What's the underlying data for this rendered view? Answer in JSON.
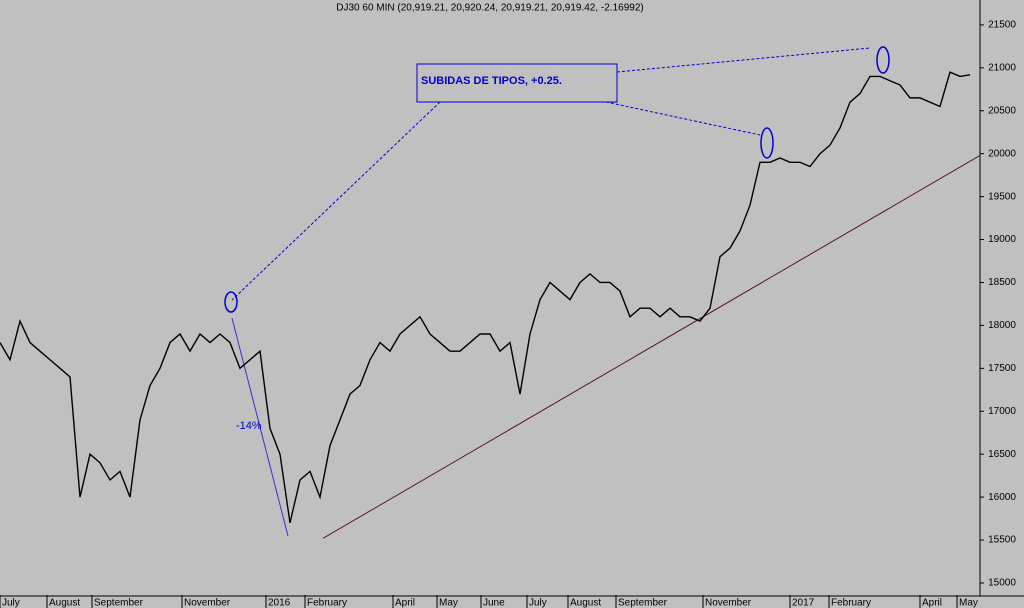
{
  "chart_data": {
    "type": "line",
    "title": "DJ30 60 MIN (20,919.21, 20,920.24, 20,919.21, 20,919.42, -2.16992)",
    "annotations": [
      "SUBIDAS DE TIPOS, +0.25.",
      "-14%"
    ],
    "x": [
      0,
      1,
      2,
      3,
      4,
      5,
      6,
      7,
      8,
      9,
      10,
      11,
      12,
      13,
      14,
      15,
      16,
      17,
      18,
      19,
      20,
      21,
      22,
      23,
      24,
      25,
      26,
      27,
      28,
      29,
      30,
      31,
      32,
      33,
      34,
      35,
      36,
      37,
      38,
      39,
      40,
      41,
      42,
      43,
      44,
      45,
      46,
      47,
      48,
      49,
      50,
      51,
      52,
      53,
      54,
      55,
      56,
      57,
      58,
      59,
      60,
      61,
      62,
      63,
      64,
      65,
      66,
      67,
      68,
      69,
      70,
      71,
      72,
      73,
      74,
      75,
      76,
      77,
      78,
      79,
      80,
      81,
      82,
      83,
      84,
      85,
      86,
      87,
      88,
      89,
      90,
      91,
      92,
      93,
      94,
      95,
      96,
      97
    ],
    "series": [
      {
        "color": "#000000",
        "values": [
          17800,
          17600,
          18050,
          17800,
          17700,
          17600,
          17500,
          17400,
          16000,
          16500,
          16400,
          16200,
          16300,
          16000,
          16900,
          17300,
          17500,
          17800,
          17900,
          17700,
          17900,
          17800,
          17900,
          17800,
          17500,
          17600,
          17700,
          16800,
          16500,
          15700,
          16200,
          16300,
          16000,
          16600,
          16900,
          17200,
          17300,
          17600,
          17800,
          17700,
          17900,
          18000,
          18100,
          17900,
          17800,
          17700,
          17700,
          17800,
          17900,
          17900,
          17700,
          17800,
          17200,
          17900,
          18300,
          18500,
          18400,
          18300,
          18500,
          18600,
          18500,
          18500,
          18400,
          18100,
          18200,
          18200,
          18100,
          18200,
          18100,
          18100,
          18050,
          18200,
          18800,
          18900,
          19100,
          19400,
          19900,
          19900,
          19950,
          19900,
          19900,
          19850,
          20000,
          20100,
          20300,
          20600,
          20700,
          20900,
          20900,
          20850,
          20800,
          20650,
          20650,
          20600,
          20550,
          20950,
          20900,
          20919
        ]
      }
    ],
    "trendline": {
      "color": "#5a1a1a",
      "x": [
        32.3,
        98
      ],
      "values": [
        15520,
        19980
      ]
    },
    "xlim": [
      0,
      98
    ],
    "ylim": [
      14860,
      21790
    ],
    "xticks": [
      {
        "value": 0,
        "label": "July"
      },
      {
        "value": 4.7,
        "label": "August"
      },
      {
        "value": 9.2,
        "label": "September"
      },
      {
        "value": 18.2,
        "label": "November"
      },
      {
        "value": 26.6,
        "label": "2016"
      },
      {
        "value": 30.5,
        "label": "February"
      },
      {
        "value": 39.3,
        "label": "April"
      },
      {
        "value": 43.7,
        "label": "May"
      },
      {
        "value": 48.1,
        "label": "June"
      },
      {
        "value": 52.7,
        "label": "July"
      },
      {
        "value": 56.8,
        "label": "August"
      },
      {
        "value": 61.6,
        "label": "September"
      },
      {
        "value": 70.3,
        "label": "November"
      },
      {
        "value": 79,
        "label": "2017"
      },
      {
        "value": 82.9,
        "label": "February"
      },
      {
        "value": 92,
        "label": "April"
      },
      {
        "value": 95.7,
        "label": "May"
      }
    ],
    "yticks": [
      15000,
      15500,
      16000,
      16500,
      17000,
      17500,
      18000,
      18500,
      19000,
      19500,
      20000,
      20500,
      21000,
      21500
    ]
  }
}
